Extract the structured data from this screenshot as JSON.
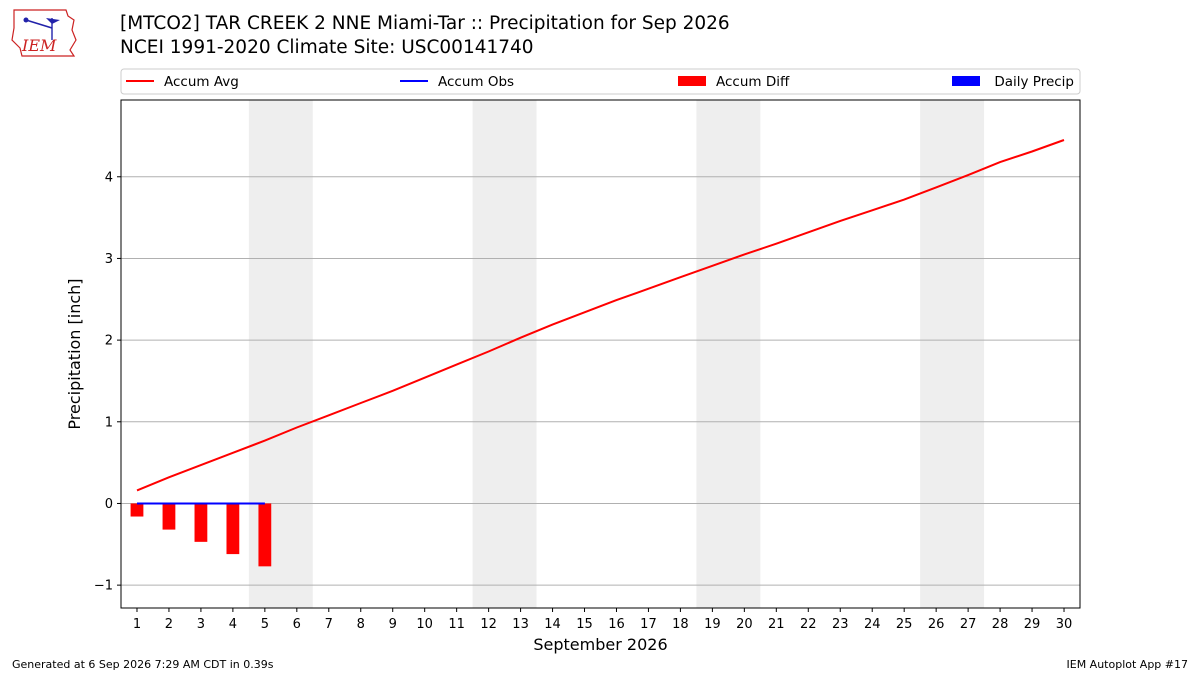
{
  "header": {
    "title_line1": "[MTCO2] TAR CREEK 2 NNE Miami-Tar :: Precipitation for Sep 2026",
    "title_line2": "NCEI 1991-2020 Climate Site: USC00141740",
    "logo_text": "IEM"
  },
  "footer": {
    "generated": "Generated at 6 Sep 2026 7:29 AM CDT in 0.39s",
    "app": "IEM Autoplot App #17"
  },
  "colors": {
    "accum_avg": "#ff0000",
    "accum_obs": "#0000ff",
    "accum_diff": "#ff0000",
    "daily_precip": "#0000ff",
    "weekend_shade": "#eeeeee",
    "grid": "#b0b0b0"
  },
  "chart_data": {
    "type": "line",
    "xlabel": "September 2026",
    "ylabel": "Precipitation [inch]",
    "x": [
      1,
      2,
      3,
      4,
      5,
      6,
      7,
      8,
      9,
      10,
      11,
      12,
      13,
      14,
      15,
      16,
      17,
      18,
      19,
      20,
      21,
      22,
      23,
      24,
      25,
      26,
      27,
      28,
      29,
      30
    ],
    "xlim": [
      0.5,
      30.5
    ],
    "ylim": [
      -1.28,
      4.94
    ],
    "yticks": [
      -1,
      0,
      1,
      2,
      3,
      4
    ],
    "ytick_labels": [
      "−1",
      "0",
      "1",
      "2",
      "3",
      "4"
    ],
    "grid": "y-major",
    "legend": {
      "placement": "top",
      "entries": [
        {
          "label": "Accum Avg",
          "kind": "line",
          "color": "#ff0000"
        },
        {
          "label": "Accum Obs",
          "kind": "line",
          "color": "#0000ff"
        },
        {
          "label": "Accum Diff",
          "kind": "bar",
          "color": "#ff0000"
        },
        {
          "label": "Daily Precip",
          "kind": "bar",
          "color": "#0000ff"
        }
      ]
    },
    "weekend_shading": [
      [
        5,
        6
      ],
      [
        12,
        13
      ],
      [
        19,
        20
      ],
      [
        26,
        27
      ]
    ],
    "series": [
      {
        "name": "Accum Avg",
        "kind": "line",
        "x": [
          1,
          2,
          3,
          4,
          5,
          6,
          7,
          8,
          9,
          10,
          11,
          12,
          13,
          14,
          15,
          16,
          17,
          18,
          19,
          20,
          21,
          22,
          23,
          24,
          25,
          26,
          27,
          28,
          29,
          30
        ],
        "values": [
          0.16,
          0.32,
          0.47,
          0.62,
          0.77,
          0.93,
          1.08,
          1.23,
          1.38,
          1.54,
          1.7,
          1.86,
          2.03,
          2.19,
          2.34,
          2.49,
          2.63,
          2.77,
          2.91,
          3.05,
          3.18,
          3.32,
          3.46,
          3.59,
          3.72,
          3.87,
          4.02,
          4.18,
          4.31,
          4.45
        ]
      },
      {
        "name": "Accum Obs",
        "kind": "line",
        "x": [
          1,
          2,
          3,
          4,
          5
        ],
        "values": [
          0,
          0,
          0,
          0,
          0
        ]
      },
      {
        "name": "Accum Diff",
        "kind": "bar",
        "x": [
          1,
          2,
          3,
          4,
          5
        ],
        "values": [
          -0.16,
          -0.32,
          -0.47,
          -0.62,
          -0.77
        ]
      },
      {
        "name": "Daily Precip",
        "kind": "bar",
        "x": [
          1,
          2,
          3,
          4,
          5
        ],
        "values": [
          0,
          0,
          0,
          0,
          0
        ]
      }
    ]
  }
}
